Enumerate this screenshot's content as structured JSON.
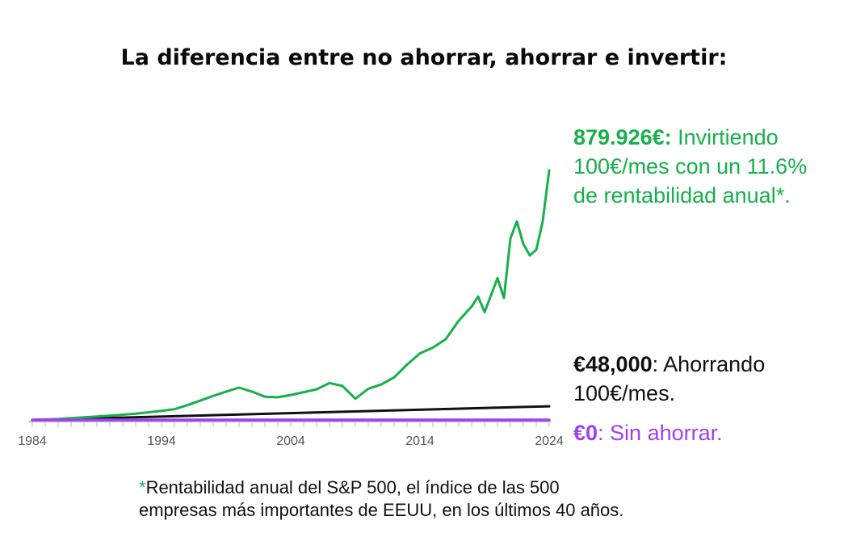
{
  "title": "La diferencia entre no ahorrar, ahorrar e invertir:",
  "annotations": {
    "invest_value": "879.926€:",
    "invest_line1": " Invirtiendo",
    "invest_line2": "100€/mes con un 11.6%",
    "invest_line3": "de rentabilidad anual*.",
    "save_value": "€48,000",
    "save_line1": ": Ahorrando",
    "save_line2": "100€/mes.",
    "none_value": "€0",
    "none_line1": ": Sin ahorrar."
  },
  "footnote": {
    "star": "*",
    "line1": "Rentabilidad anual del S&P 500, el índice de las 500",
    "line2": "empresas más importantes de EEUU, en los últimos 40 años."
  },
  "colors": {
    "invest": "#16b04c",
    "save": "#111111",
    "none": "#a13ff0",
    "axis": "#bdbdbd"
  },
  "chart_data": {
    "type": "line",
    "x_ticks": [
      "1984",
      "1994",
      "2004",
      "2014",
      "2024"
    ],
    "xlim": [
      1984,
      2024
    ],
    "ylim": [
      0,
      879926
    ],
    "series": [
      {
        "key": "invest",
        "x": [
          1984,
          1986,
          1988,
          1990,
          1992,
          1994,
          1995,
          1996,
          1997,
          1998,
          1999,
          2000,
          2001,
          2002,
          2003,
          2004,
          2005,
          2006,
          2007,
          2008,
          2009,
          2010,
          2011,
          2012,
          2013,
          2014,
          2015,
          2016,
          2017,
          2018,
          2018.5,
          2019,
          2020,
          2020.5,
          2021,
          2021.5,
          2022,
          2022.5,
          2023,
          2023.5,
          2024
        ],
        "y": [
          0,
          3000,
          9000,
          15000,
          22000,
          32000,
          38000,
          52000,
          68000,
          85000,
          100000,
          114000,
          100000,
          82000,
          80000,
          88000,
          98000,
          108000,
          130000,
          120000,
          75000,
          110000,
          125000,
          150000,
          195000,
          235000,
          255000,
          285000,
          350000,
          400000,
          435000,
          380000,
          500000,
          430000,
          640000,
          700000,
          620000,
          580000,
          600000,
          700000,
          879926
        ]
      },
      {
        "key": "save",
        "x": [
          1984,
          2024
        ],
        "y": [
          0,
          48000
        ]
      },
      {
        "key": "none",
        "x": [
          1984,
          2024
        ],
        "y": [
          0,
          0
        ]
      }
    ]
  }
}
